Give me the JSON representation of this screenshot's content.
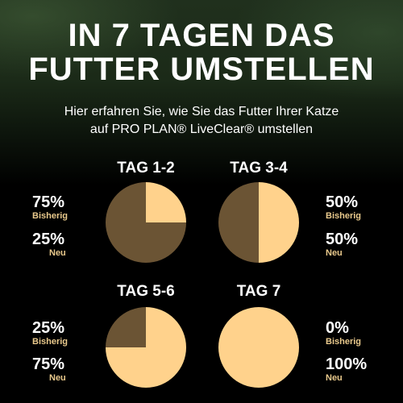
{
  "header": {
    "title_line1": "IN 7 TAGEN DAS",
    "title_line2": "FUTTER UMSTELLEN",
    "subtitle_line1": "Hier erfahren Sie, wie Sie das Futter Ihrer Katze",
    "subtitle_line2": "auf PRO PLAN® LiveClear® umstellen"
  },
  "colors": {
    "old_food": "#6b5434",
    "new_food": "#ffd28c",
    "label_accent": "#e9c98c"
  },
  "chart_data": {
    "type": "pie",
    "unit": "%",
    "categories": [
      "Bisherig",
      "Neu"
    ],
    "charts": [
      {
        "title": "TAG 1-2",
        "bisherig": 75,
        "neu": 25,
        "bisherig_text": "75%",
        "neu_text": "25%",
        "bisherig_label": "Bisherig",
        "neu_label": "Neu"
      },
      {
        "title": "TAG 3-4",
        "bisherig": 50,
        "neu": 50,
        "bisherig_text": "50%",
        "neu_text": "50%",
        "bisherig_label": "Bisherig",
        "neu_label": "Neu"
      },
      {
        "title": "TAG 5-6",
        "bisherig": 25,
        "neu": 75,
        "bisherig_text": "25%",
        "neu_text": "75%",
        "bisherig_label": "Bisherig",
        "neu_label": "Neu"
      },
      {
        "title": "TAG 7",
        "bisherig": 0,
        "neu": 100,
        "bisherig_text": "0%",
        "neu_text": "100%",
        "bisherig_label": "Bisherig",
        "neu_label": "Neu"
      }
    ]
  }
}
